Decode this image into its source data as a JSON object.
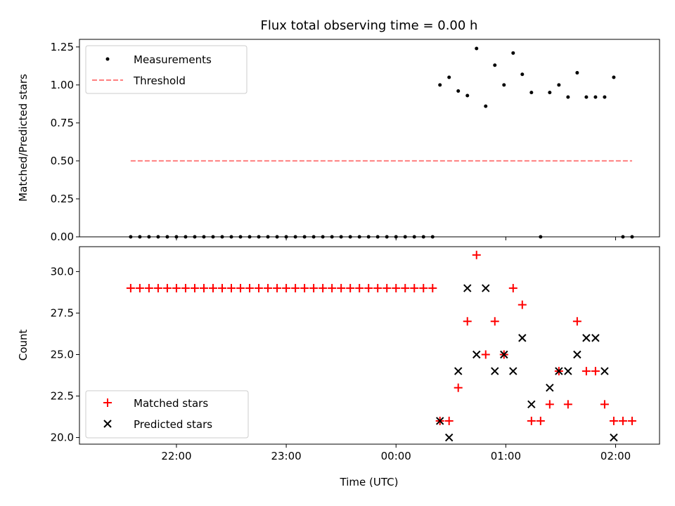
{
  "chart_data": [
    {
      "type": "scatter",
      "title": "Flux total observing time = 0.00 h",
      "xlabel": "",
      "ylabel": "Matched/Predicted stars",
      "ylim": [
        0.0,
        1.3
      ],
      "xlim": [
        "21:07",
        "02:24"
      ],
      "yticks": [
        "0.00",
        "0.25",
        "0.50",
        "0.75",
        "1.00",
        "1.25"
      ],
      "legend_position": "upper-left",
      "series": [
        {
          "name": "Measurements",
          "color": "#000000",
          "marker": "dot",
          "x": [
            "21:35",
            "21:40",
            "21:45",
            "21:50",
            "21:55",
            "22:00",
            "22:05",
            "22:10",
            "22:15",
            "22:20",
            "22:25",
            "22:30",
            "22:35",
            "22:40",
            "22:45",
            "22:50",
            "22:55",
            "23:00",
            "23:05",
            "23:10",
            "23:15",
            "23:20",
            "23:25",
            "23:30",
            "23:35",
            "23:40",
            "23:45",
            "23:50",
            "23:55",
            "00:00",
            "00:05",
            "00:10",
            "00:15",
            "00:20",
            "00:24",
            "00:29",
            "00:34",
            "00:39",
            "00:44",
            "00:49",
            "00:54",
            "00:59",
            "01:04",
            "01:09",
            "01:14",
            "01:19",
            "01:24",
            "01:29",
            "01:34",
            "01:39",
            "01:44",
            "01:49",
            "01:54",
            "01:59",
            "02:04",
            "02:09"
          ],
          "y": [
            0,
            0,
            0,
            0,
            0,
            0,
            0,
            0,
            0,
            0,
            0,
            0,
            0,
            0,
            0,
            0,
            0,
            0,
            0,
            0,
            0,
            0,
            0,
            0,
            0,
            0,
            0,
            0,
            0,
            0,
            0,
            0,
            0,
            0,
            1.0,
            1.05,
            0.96,
            0.93,
            1.24,
            0.86,
            1.13,
            1.0,
            1.21,
            1.07,
            0.95,
            0,
            0.95,
            1.0,
            0.92,
            1.08,
            0.92,
            0.92,
            0.92,
            1.05,
            0,
            0
          ]
        },
        {
          "name": "Threshold",
          "color": "#ff7f7f",
          "style": "dashed",
          "x": [
            "21:35",
            "02:09"
          ],
          "y": [
            0.5,
            0.5
          ]
        }
      ]
    },
    {
      "type": "scatter",
      "xlabel": "Time (UTC)",
      "ylabel": "Count",
      "ylim": [
        19.6,
        31.5
      ],
      "xlim": [
        "21:07",
        "02:24"
      ],
      "yticks": [
        "20.0",
        "22.5",
        "25.0",
        "27.5",
        "30.0"
      ],
      "xticks": [
        "22:00",
        "23:00",
        "00:00",
        "01:00",
        "02:00"
      ],
      "legend_position": "lower-left",
      "series": [
        {
          "name": "Matched stars",
          "color": "#ff0000",
          "marker": "plus",
          "x": [
            "21:35",
            "21:40",
            "21:45",
            "21:50",
            "21:55",
            "22:00",
            "22:05",
            "22:10",
            "22:15",
            "22:20",
            "22:25",
            "22:30",
            "22:35",
            "22:40",
            "22:45",
            "22:50",
            "22:55",
            "23:00",
            "23:05",
            "23:10",
            "23:15",
            "23:20",
            "23:25",
            "23:30",
            "23:35",
            "23:40",
            "23:45",
            "23:50",
            "23:55",
            "00:00",
            "00:05",
            "00:10",
            "00:15",
            "00:20",
            "00:24",
            "00:29",
            "00:34",
            "00:39",
            "00:44",
            "00:49",
            "00:54",
            "00:59",
            "01:04",
            "01:09",
            "01:14",
            "01:19",
            "01:24",
            "01:29",
            "01:34",
            "01:39",
            "01:44",
            "01:49",
            "01:54",
            "01:59",
            "02:04",
            "02:09"
          ],
          "y": [
            29,
            29,
            29,
            29,
            29,
            29,
            29,
            29,
            29,
            29,
            29,
            29,
            29,
            29,
            29,
            29,
            29,
            29,
            29,
            29,
            29,
            29,
            29,
            29,
            29,
            29,
            29,
            29,
            29,
            29,
            29,
            29,
            29,
            29,
            21,
            21,
            23,
            27,
            31,
            25,
            27,
            25,
            29,
            28,
            21,
            21,
            22,
            24,
            22,
            27,
            24,
            24,
            22,
            21,
            21,
            21
          ]
        },
        {
          "name": "Predicted stars",
          "color": "#000000",
          "marker": "x",
          "x": [
            "00:24",
            "00:29",
            "00:34",
            "00:39",
            "00:44",
            "00:49",
            "00:54",
            "00:59",
            "01:04",
            "01:09",
            "01:14",
            "01:24",
            "01:29",
            "01:34",
            "01:39",
            "01:44",
            "01:49",
            "01:54",
            "01:59"
          ],
          "y": [
            21,
            20,
            24,
            29,
            25,
            29,
            24,
            25,
            24,
            26,
            22,
            23,
            24,
            24,
            25,
            26,
            26,
            24,
            20
          ]
        }
      ]
    }
  ]
}
